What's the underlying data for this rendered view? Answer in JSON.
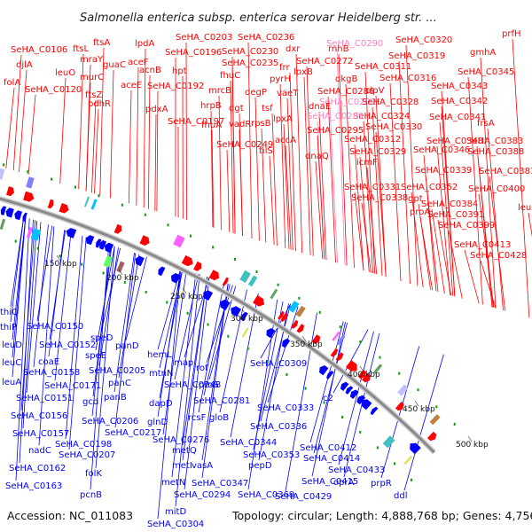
{
  "title": "Salmonella enterica subsp. enterica serovar Heidelberg str. ...",
  "footer": {
    "accession": "Accession: NC_011083",
    "summary": "Topology: circular; Length: 4,888,768 bp; Genes: 4,756"
  },
  "colors": {
    "forward_strand": "#ff0000",
    "reverse_strand": "#0000ff",
    "rna_labels": "#ff80c0",
    "backbone": "#8a8a8a",
    "dot": "#00a000"
  },
  "scale_ticks": [
    "150 kbp",
    "200 kbp",
    "250 kbp",
    "300 kbp",
    "350 kbp",
    "400 kbp",
    "450 kbp",
    "500 kbp"
  ],
  "forward_labels": [
    "SeHA_C0203",
    "SeHA_C0236",
    "SeHA_C0290",
    "SeHA_C0320",
    "prfH",
    "SeHA_C0106",
    "ftsA",
    "lpdA",
    "SeHA_C0196",
    "SeHA_C0230",
    "dxr",
    "rnhB",
    "SeHA_C0319",
    "gmhA",
    "djlA",
    "ftsL",
    "aceF",
    "hpt",
    "SeHA_C0235",
    "frr",
    "SeHA_C0272",
    "SeHA_C0311",
    "SeHA_C0345",
    "mraY",
    "guaC",
    "lpxB",
    "dkgB",
    "SeHA_C0316",
    "folA",
    "leuO",
    "acnB",
    "fhuC",
    "SeHA_C0286",
    "SeHA_C0343",
    "SeHA_C0120",
    "murC",
    "pyrH",
    "clpV",
    "aceE",
    "SeHA_C0192",
    "mrcB",
    "degP",
    "vaeT",
    "ftsZ",
    "SeHA_C0292",
    "SeHA_C0342",
    "pdhR",
    "dnaE",
    "SeHA_C0328",
    "pdxA",
    "hrpB",
    "dgt",
    "tsf",
    "SeHA_C0324",
    "SeHA_C0341",
    "SeHA_C0197",
    "lpxA",
    "SeHA_C0289",
    "fhuA",
    "vadR",
    "rpsB",
    "SeHA_C0295",
    "SeHA_C0330",
    "frsA",
    "SeHA_C0312",
    "SeHA_C0340",
    "SeHA_C0383",
    "SeHA_C0249",
    "accA",
    "SeHA_C0346",
    "SeHA_C0388",
    "tilS",
    "dnaQ",
    "SeHA_C0329",
    "icmF",
    "SeHA_C0339",
    "SeHA_C0381",
    "SeHA_C0331",
    "SeHA_C0352",
    "SeHA_C0400",
    "SeHA_C0338",
    "gpt",
    "SeHA_C0384",
    "leuD",
    "proA",
    "SeHA_C0391",
    "SeHA_C0399",
    "SeHA_C0413",
    "SeHA_C0428"
  ],
  "reverse_labels": [
    "thiQ",
    "thiP",
    "SeHA_C0150",
    "leuD",
    "SeHA_C0152",
    "speD",
    "leuC",
    "coaE",
    "speE",
    "panD",
    "leuA",
    "SeHA_C0158",
    "SeHA_C0205",
    "hemL",
    "SeHA_C0171",
    "panC",
    "mtnN",
    "map",
    "SeHA_C0309",
    "SeHA_C0151",
    "SeHA_C0248",
    "rof",
    "gcd",
    "panB",
    "proS",
    "SeHA_C0156",
    "SeHA_C0206",
    "dapD",
    "SeHA_C0281",
    "SeHA_C0333",
    "SeHA_C0157",
    "SeHA_C0217",
    "glnD",
    "rcsF",
    "gloB",
    "c2",
    "SeHA_C0198",
    "SeHA_C0336",
    "nadC",
    "SeHA_C0207",
    "SeHA_C0276",
    "SeHA_C0344",
    "SeHA_C0412",
    "metQ",
    "SeHA_C0353",
    "SeHA_C0414",
    "SeHA_C0162",
    "folK",
    "metI",
    "vasA",
    "pepD",
    "SeHA_C0433",
    "metN",
    "SeHA_C0347",
    "SeHA_C0415",
    "oprA",
    "prpR",
    "SeHA_C0163",
    "pcnB",
    "SeHA_C0294",
    "SeHA_C0369",
    "SeHA_C0429",
    "ddl",
    "mitD",
    "SeHA_C0304"
  ]
}
